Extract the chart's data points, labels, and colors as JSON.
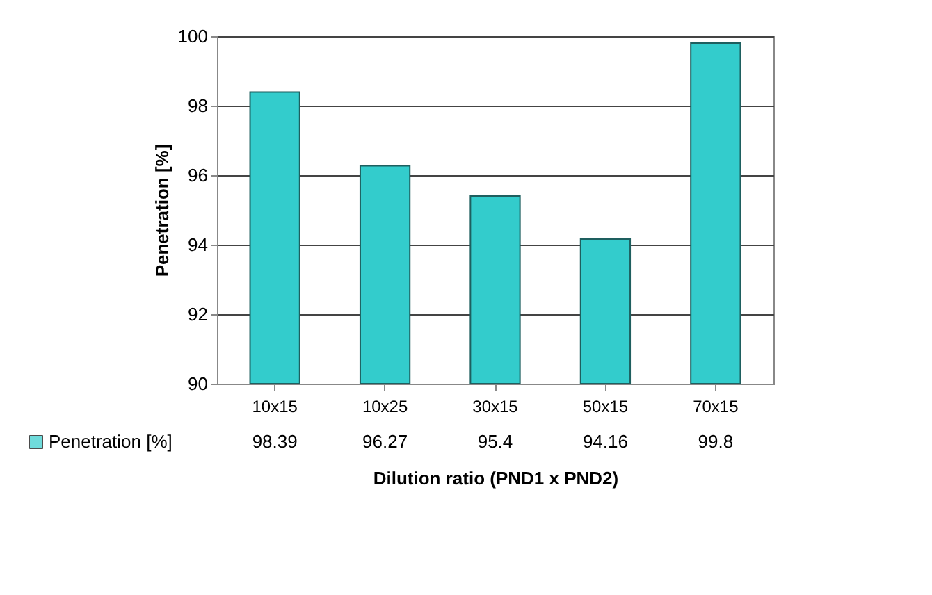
{
  "chart_data": {
    "type": "bar",
    "xlabel": "Dilution ratio (PND1 x PND2)",
    "ylabel": "Penetration [%]",
    "categories": [
      "10x15",
      "10x25",
      "30x15",
      "50x15",
      "70x15"
    ],
    "series": [
      {
        "name": "Penetration [%]",
        "color": "#33cccc",
        "values": [
          98.39,
          96.27,
          95.4,
          94.16,
          99.8
        ]
      }
    ],
    "ylim": [
      90,
      100
    ],
    "yticks": [
      90,
      92,
      94,
      96,
      98,
      100
    ],
    "grid": "y",
    "data_labels": true,
    "legend": "bottom left"
  }
}
